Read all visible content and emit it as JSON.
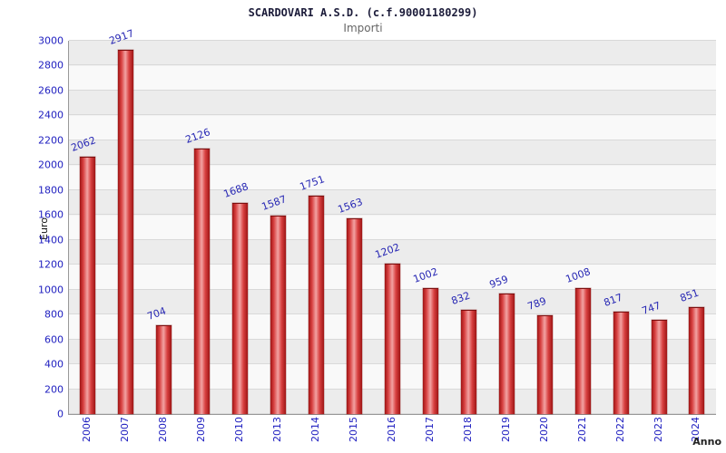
{
  "chart_data": {
    "type": "bar",
    "title": "SCARDOVARI A.S.D. (c.f.90001180299)",
    "subtitle": "Importi",
    "xlabel": "Anno",
    "ylabel": "Euro",
    "categories": [
      "2006",
      "2007",
      "2008",
      "2009",
      "2010",
      "2013",
      "2014",
      "2015",
      "2016",
      "2017",
      "2018",
      "2019",
      "2020",
      "2021",
      "2022",
      "2023",
      "2024"
    ],
    "values": [
      2062,
      2917,
      704,
      2126,
      1688,
      1587,
      1751,
      1563,
      1202,
      1002,
      832,
      959,
      789,
      1008,
      817,
      747,
      851
    ],
    "ylim": [
      0,
      3000
    ],
    "ytick_step": 200,
    "grid": true,
    "legend": "none",
    "bar_color": "#d84040",
    "value_label_color": "#2828b4",
    "tick_label_color": "#2020c0"
  }
}
